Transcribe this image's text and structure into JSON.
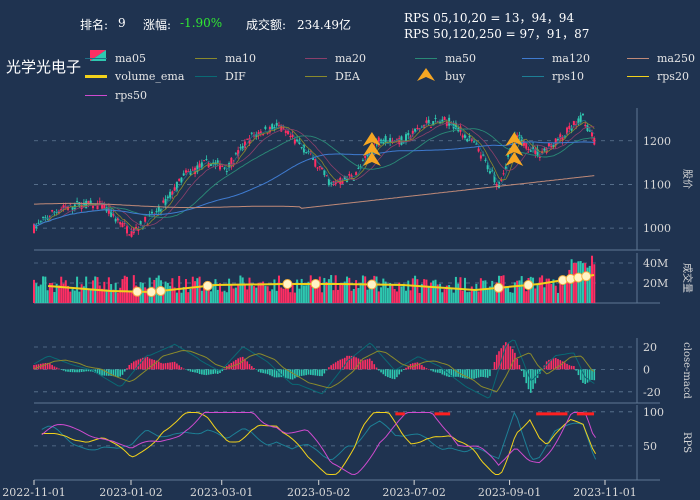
{
  "header": {
    "rank_label": "排名:",
    "rank_value": "9",
    "change_label": "涨幅:",
    "change_value": "-1.90%",
    "change_color": "#31e832",
    "turnover_label": "成交额:",
    "turnover_value": "234.49亿",
    "rps_short": "RPS 05,10,20 = 13，94，94",
    "rps_long": "RPS 50,120,250 = 97，91，87"
  },
  "title": "光学光电子",
  "legend": [
    {
      "label": "ma05",
      "color": "#1f6f86"
    },
    {
      "label": "ma10",
      "color": "#8a8a2c"
    },
    {
      "label": "ma20",
      "color": "#8b3f6a"
    },
    {
      "label": "ma50",
      "color": "#2a8a76"
    },
    {
      "label": "ma120",
      "color": "#3f7bd0"
    },
    {
      "label": "ma250",
      "color": "#c08a78"
    },
    {
      "label": "volume_ema",
      "color": "#f2d21b"
    },
    {
      "label": "DIF",
      "color": "#0a6a74"
    },
    {
      "label": "DEA",
      "color": "#8a8a2c"
    },
    {
      "label": "buy",
      "color": "#f5a623",
      "icon": "buy-arrow-icon"
    },
    {
      "label": "rps10",
      "color": "#1d7f95"
    },
    {
      "label": "rps20",
      "color": "#f2d21b"
    },
    {
      "label": "rps50",
      "color": "#cf4bcf"
    }
  ],
  "colors": {
    "up": "#ff2e63",
    "down": "#2ec8b0",
    "grid": "#5f7793",
    "axis": "#d8d8d8"
  },
  "chart_data": {
    "type": "candlestick",
    "x_ticks": [
      "2022-11-01",
      "2023-01-02",
      "2023-03-01",
      "2023-05-02",
      "2023-07-02",
      "2023-09-01",
      "2023-11-01"
    ],
    "buy_signal_dates": [
      "2023-06-05",
      "2023-09-04"
    ],
    "panels": [
      {
        "name": "price",
        "ylabel": "股价",
        "y_ticks": [
          1000,
          1100,
          1200
        ],
        "ylim": [
          950,
          1275
        ],
        "close_trend": [
          {
            "x": "2022-11-01",
            "y": 1000
          },
          {
            "x": "2022-11-15",
            "y": 1040
          },
          {
            "x": "2022-12-01",
            "y": 1055
          },
          {
            "x": "2022-12-15",
            "y": 1050
          },
          {
            "x": "2023-01-02",
            "y": 990
          },
          {
            "x": "2023-01-20",
            "y": 1040
          },
          {
            "x": "2023-02-05",
            "y": 1120
          },
          {
            "x": "2023-02-20",
            "y": 1150
          },
          {
            "x": "2023-03-05",
            "y": 1140
          },
          {
            "x": "2023-03-20",
            "y": 1210
          },
          {
            "x": "2023-04-05",
            "y": 1235
          },
          {
            "x": "2023-04-25",
            "y": 1175
          },
          {
            "x": "2023-05-10",
            "y": 1100
          },
          {
            "x": "2023-05-25",
            "y": 1120
          },
          {
            "x": "2023-06-10",
            "y": 1205
          },
          {
            "x": "2023-06-25",
            "y": 1200
          },
          {
            "x": "2023-07-10",
            "y": 1240
          },
          {
            "x": "2023-07-25",
            "y": 1245
          },
          {
            "x": "2023-08-10",
            "y": 1190
          },
          {
            "x": "2023-08-25",
            "y": 1100
          },
          {
            "x": "2023-09-05",
            "y": 1210
          },
          {
            "x": "2023-09-20",
            "y": 1170
          },
          {
            "x": "2023-10-05",
            "y": 1210
          },
          {
            "x": "2023-10-18",
            "y": 1255
          },
          {
            "x": "2023-10-25",
            "y": 1200
          }
        ]
      },
      {
        "name": "volume",
        "ylabel": "成交量",
        "y_ticks": [
          "20M",
          "40M"
        ],
        "ylim": [
          0,
          50
        ],
        "unit": "M",
        "volume_ema": [
          {
            "x": "2022-11-10",
            "y": 17
          },
          {
            "x": "2022-12-20",
            "y": 12
          },
          {
            "x": "2023-01-15",
            "y": 11
          },
          {
            "x": "2023-02-25",
            "y": 18
          },
          {
            "x": "2023-04-10",
            "y": 19
          },
          {
            "x": "2023-05-15",
            "y": 19
          },
          {
            "x": "2023-06-25",
            "y": 18
          },
          {
            "x": "2023-08-10",
            "y": 13
          },
          {
            "x": "2023-09-20",
            "y": 19
          },
          {
            "x": "2023-10-25",
            "y": 28
          }
        ]
      },
      {
        "name": "macd",
        "ylabel": "close-macd",
        "y_ticks": [
          -20,
          0,
          20
        ],
        "ylim": [
          -30,
          28
        ]
      },
      {
        "name": "rps",
        "ylabel": "RPS",
        "y_ticks": [
          50,
          100
        ],
        "ylim": [
          0,
          110
        ]
      }
    ]
  }
}
